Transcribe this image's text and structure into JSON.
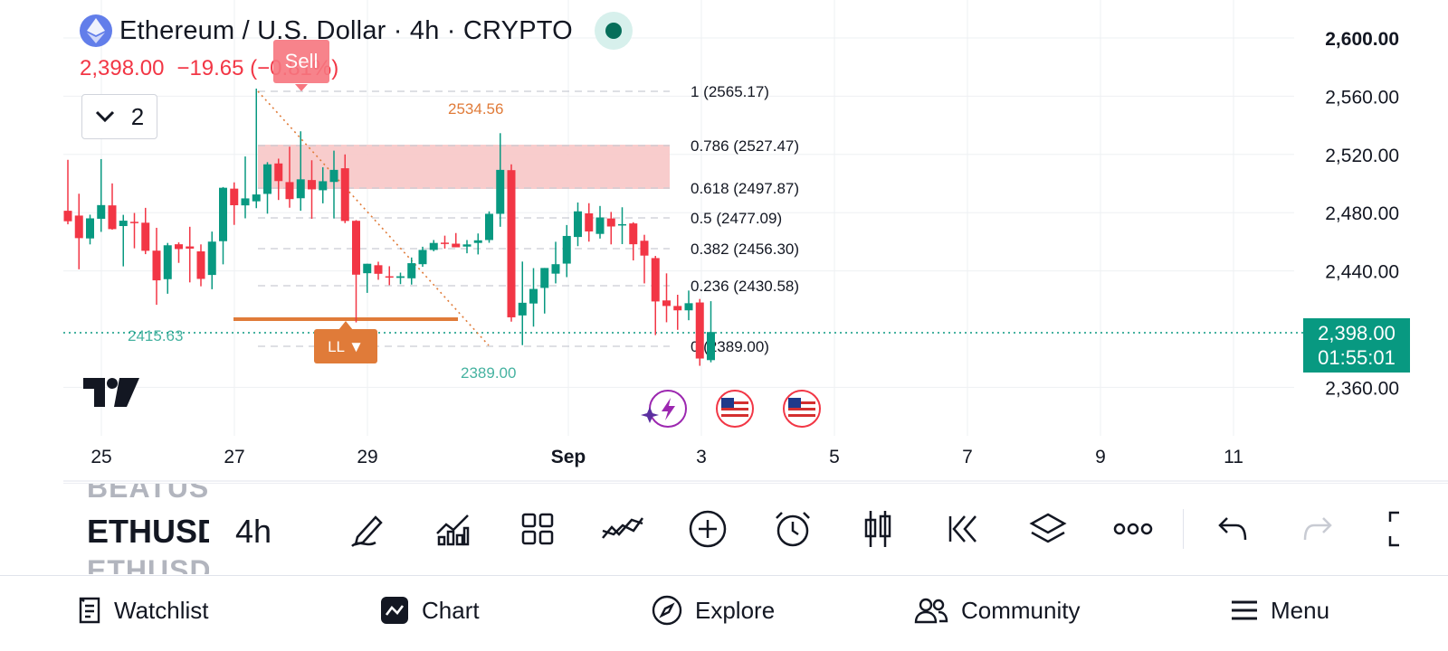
{
  "header": {
    "title": "Ethereum / U.S. Dollar · 4h · CRYPTO",
    "price": "2,398.00",
    "change": "−19.65 (−0.81%)"
  },
  "chart_badges": {
    "sell": "Sell",
    "layers_count": "2",
    "ll_label": "LL ▼",
    "low_price": "2389.00",
    "high_price": "2534.56",
    "left_price": "2415.63",
    "current_price": "2,398.00",
    "countdown": "01:55:01"
  },
  "chart_data": {
    "type": "candlestick",
    "symbol": "ETHUSD",
    "interval": "4h",
    "y_axis_labels": [
      "2,600.00",
      "2,560.00",
      "2,520.00",
      "2,480.00",
      "2,440.00",
      "2,360.00"
    ],
    "y_axis_values": [
      2600,
      2560,
      2520,
      2480,
      2440,
      2360
    ],
    "x_axis_labels": [
      "25",
      "27",
      "29",
      "Sep",
      "3",
      "5",
      "7",
      "9",
      "11"
    ],
    "fibonacci": [
      {
        "level": "1",
        "price": "(2565.17)"
      },
      {
        "level": "0.786",
        "price": "(2527.47)"
      },
      {
        "level": "0.618",
        "price": "(2497.87)"
      },
      {
        "level": "0.5",
        "price": "(2477.09)"
      },
      {
        "level": "0.382",
        "price": "(2456.30)"
      },
      {
        "level": "0.236",
        "price": "(2430.58)"
      },
      {
        "level": "0",
        "price": "(2389.00)"
      }
    ],
    "last_price": 2398.0,
    "candles": [
      {
        "o": 2481.3,
        "h": 2516.3,
        "l": 2472.0,
        "c": 2474.1
      },
      {
        "o": 2478.0,
        "h": 2493.0,
        "l": 2441.1,
        "c": 2462.5
      },
      {
        "o": 2462.3,
        "h": 2478.6,
        "l": 2458.2,
        "c": 2476.1
      },
      {
        "o": 2475.8,
        "h": 2516.8,
        "l": 2466.8,
        "c": 2485.2
      },
      {
        "o": 2485.0,
        "h": 2500.1,
        "l": 2468.3,
        "c": 2468.7
      },
      {
        "o": 2470.8,
        "h": 2478.5,
        "l": 2443.1,
        "c": 2474.5
      },
      {
        "o": 2473.7,
        "h": 2479.8,
        "l": 2455.5,
        "c": 2473.3
      },
      {
        "o": 2473.1,
        "h": 2483.3,
        "l": 2451.5,
        "c": 2453.8
      },
      {
        "o": 2453.9,
        "h": 2469.6,
        "l": 2416.7,
        "c": 2433.5
      },
      {
        "o": 2434.3,
        "h": 2459.2,
        "l": 2424.3,
        "c": 2457.6
      },
      {
        "o": 2458.3,
        "h": 2459.6,
        "l": 2445.5,
        "c": 2455.0
      },
      {
        "o": 2456.8,
        "h": 2470.3,
        "l": 2432.1,
        "c": 2455.3
      },
      {
        "o": 2453.4,
        "h": 2458.2,
        "l": 2429.4,
        "c": 2434.5
      },
      {
        "o": 2437.2,
        "h": 2467.0,
        "l": 2427.4,
        "c": 2460.1
      },
      {
        "o": 2460.4,
        "h": 2497.6,
        "l": 2444.5,
        "c": 2497.1
      },
      {
        "o": 2496.5,
        "h": 2500.8,
        "l": 2471.6,
        "c": 2485.1
      },
      {
        "o": 2485.0,
        "h": 2518.6,
        "l": 2476.1,
        "c": 2489.8
      },
      {
        "o": 2487.8,
        "h": 2565.2,
        "l": 2483.1,
        "c": 2492.5
      },
      {
        "o": 2492.9,
        "h": 2514.7,
        "l": 2479.3,
        "c": 2513.2
      },
      {
        "o": 2513.8,
        "h": 2517.1,
        "l": 2488.7,
        "c": 2501.7
      },
      {
        "o": 2501.0,
        "h": 2525.3,
        "l": 2483.4,
        "c": 2489.3
      },
      {
        "o": 2489.9,
        "h": 2535.9,
        "l": 2481.3,
        "c": 2502.9
      },
      {
        "o": 2502.4,
        "h": 2516.0,
        "l": 2475.8,
        "c": 2496.0
      },
      {
        "o": 2495.4,
        "h": 2511.2,
        "l": 2486.4,
        "c": 2501.6
      },
      {
        "o": 2501.1,
        "h": 2522.6,
        "l": 2476.0,
        "c": 2509.4
      },
      {
        "o": 2510.5,
        "h": 2520.0,
        "l": 2472.8,
        "c": 2474.3
      },
      {
        "o": 2474.4,
        "h": 2474.9,
        "l": 2404.6,
        "c": 2437.4
      },
      {
        "o": 2438.4,
        "h": 2444.9,
        "l": 2424.9,
        "c": 2444.9
      },
      {
        "o": 2443.9,
        "h": 2446.3,
        "l": 2433.9,
        "c": 2438.0
      },
      {
        "o": 2436.3,
        "h": 2443.2,
        "l": 2430.2,
        "c": 2435.7
      },
      {
        "o": 2435.2,
        "h": 2438.8,
        "l": 2430.9,
        "c": 2436.3
      },
      {
        "o": 2434.9,
        "h": 2449.2,
        "l": 2430.6,
        "c": 2445.3
      },
      {
        "o": 2444.6,
        "h": 2456.6,
        "l": 2442.8,
        "c": 2454.4
      },
      {
        "o": 2454.4,
        "h": 2461.2,
        "l": 2453.5,
        "c": 2459.2
      },
      {
        "o": 2459.4,
        "h": 2464.2,
        "l": 2455.3,
        "c": 2458.6
      },
      {
        "o": 2458.7,
        "h": 2466.0,
        "l": 2456.7,
        "c": 2456.2
      },
      {
        "o": 2456.7,
        "h": 2461.2,
        "l": 2452.1,
        "c": 2458.2
      },
      {
        "o": 2459.2,
        "h": 2465.7,
        "l": 2451.3,
        "c": 2461.0
      },
      {
        "o": 2461.2,
        "h": 2480.9,
        "l": 2459.3,
        "c": 2479.2
      },
      {
        "o": 2479.2,
        "h": 2534.6,
        "l": 2470.3,
        "c": 2509.4
      },
      {
        "o": 2509.2,
        "h": 2513.2,
        "l": 2405.1,
        "c": 2408.1
      },
      {
        "o": 2409.4,
        "h": 2446.4,
        "l": 2389.0,
        "c": 2418.1
      },
      {
        "o": 2417.6,
        "h": 2441.9,
        "l": 2401.7,
        "c": 2427.6
      },
      {
        "o": 2428.3,
        "h": 2442.0,
        "l": 2410.7,
        "c": 2442.0
      },
      {
        "o": 2438.1,
        "h": 2460.0,
        "l": 2431.4,
        "c": 2444.6
      },
      {
        "o": 2445.0,
        "h": 2471.5,
        "l": 2435.7,
        "c": 2464.0
      },
      {
        "o": 2463.3,
        "h": 2487.0,
        "l": 2457.0,
        "c": 2480.9
      },
      {
        "o": 2479.5,
        "h": 2486.5,
        "l": 2460.1,
        "c": 2467.1
      },
      {
        "o": 2465.4,
        "h": 2484.6,
        "l": 2462.2,
        "c": 2476.7
      },
      {
        "o": 2476.0,
        "h": 2480.5,
        "l": 2458.2,
        "c": 2470.5
      },
      {
        "o": 2471.5,
        "h": 2483.7,
        "l": 2458.4,
        "c": 2472.1
      },
      {
        "o": 2472.6,
        "h": 2473.4,
        "l": 2447.2,
        "c": 2458.3
      },
      {
        "o": 2460.7,
        "h": 2464.8,
        "l": 2431.4,
        "c": 2450.5
      },
      {
        "o": 2448.8,
        "h": 2450.3,
        "l": 2395.9,
        "c": 2419.0
      },
      {
        "o": 2419.7,
        "h": 2438.3,
        "l": 2404.7,
        "c": 2415.9
      },
      {
        "o": 2415.9,
        "h": 2423.6,
        "l": 2399.5,
        "c": 2412.9
      },
      {
        "o": 2412.9,
        "h": 2426.5,
        "l": 2406.1,
        "c": 2417.8
      },
      {
        "o": 2418.3,
        "h": 2420.7,
        "l": 2374.8,
        "c": 2379.8
      },
      {
        "o": 2378.7,
        "h": 2419.2,
        "l": 2377.2,
        "c": 2398.0
      }
    ]
  },
  "toolbar": {
    "symbol_prev": "BEATUSD",
    "symbol_current": "ETHUSD",
    "symbol_next": "ETHUSD",
    "interval": "4h"
  },
  "bottom_nav": {
    "watchlist": "Watchlist",
    "chart": "Chart",
    "explore": "Explore",
    "community": "Community",
    "menu": "Menu"
  },
  "colors": {
    "up": "#089981",
    "down": "#f23645",
    "fib_band": "#f7c6c6",
    "orange": "#e07b39",
    "accent": "#131722"
  }
}
